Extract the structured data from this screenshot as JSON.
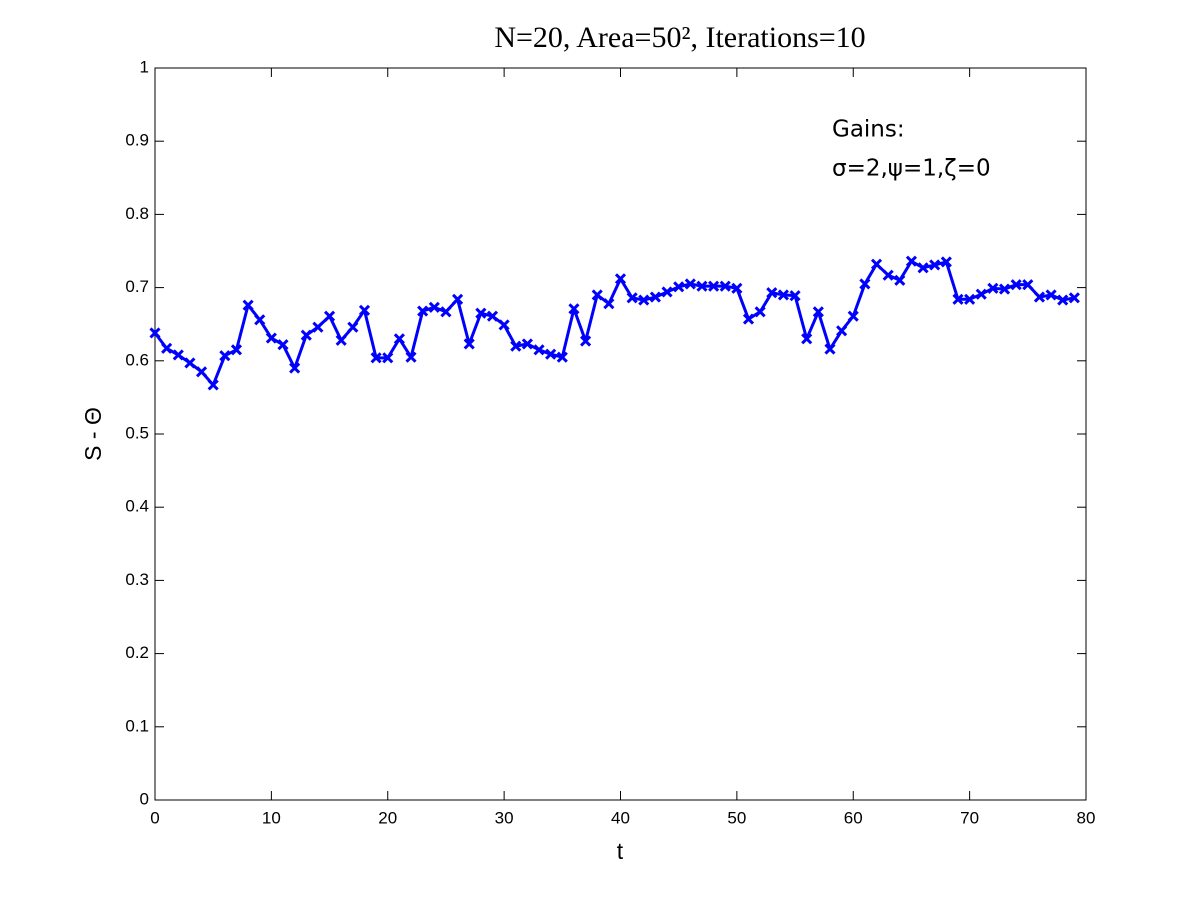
{
  "chart_data": {
    "type": "line",
    "title": "N=20, Area=50², Iterations=10",
    "xlabel": "t",
    "ylabel": "S - Θ",
    "annotations": [
      "Gains:",
      "σ=2,ψ=1,ζ=0"
    ],
    "x": [
      0,
      1,
      2,
      3,
      4,
      5,
      6,
      7,
      8,
      9,
      10,
      11,
      12,
      13,
      14,
      15,
      16,
      17,
      18,
      19,
      20,
      21,
      22,
      23,
      24,
      25,
      26,
      27,
      28,
      29,
      30,
      31,
      32,
      33,
      34,
      35,
      36,
      37,
      38,
      39,
      40,
      41,
      42,
      43,
      44,
      45,
      46,
      47,
      48,
      49,
      50,
      51,
      52,
      53,
      54,
      55,
      56,
      57,
      58,
      59,
      60,
      61,
      62,
      63,
      64,
      65,
      66,
      67,
      68,
      69,
      70,
      71,
      72,
      73,
      74,
      75,
      76,
      77,
      78,
      79
    ],
    "series": [
      {
        "color": "#0000ff",
        "values": [
          0.638,
          0.617,
          0.608,
          0.597,
          0.585,
          0.567,
          0.607,
          0.615,
          0.676,
          0.656,
          0.631,
          0.622,
          0.59,
          0.635,
          0.646,
          0.661,
          0.628,
          0.646,
          0.669,
          0.604,
          0.604,
          0.63,
          0.605,
          0.668,
          0.673,
          0.667,
          0.684,
          0.623,
          0.665,
          0.661,
          0.649,
          0.62,
          0.623,
          0.615,
          0.609,
          0.605,
          0.671,
          0.627,
          0.69,
          0.678,
          0.712,
          0.686,
          0.683,
          0.687,
          0.694,
          0.701,
          0.705,
          0.702,
          0.702,
          0.702,
          0.699,
          0.657,
          0.667,
          0.693,
          0.69,
          0.689,
          0.63,
          0.667,
          0.616,
          0.641,
          0.661,
          0.705,
          0.732,
          0.717,
          0.71,
          0.736,
          0.727,
          0.731,
          0.735,
          0.684,
          0.684,
          0.691,
          0.699,
          0.698,
          0.704,
          0.704,
          0.687,
          0.69,
          0.683,
          0.686
        ]
      }
    ],
    "xlim": [
      0,
      80
    ],
    "xticks": [
      0,
      10,
      20,
      30,
      40,
      50,
      60,
      70,
      80
    ],
    "ylim": [
      0,
      1
    ],
    "yticks": [
      0,
      0.1,
      0.2,
      0.3,
      0.4,
      0.5,
      0.6,
      0.7,
      0.8,
      0.9,
      1
    ],
    "grid": false
  }
}
